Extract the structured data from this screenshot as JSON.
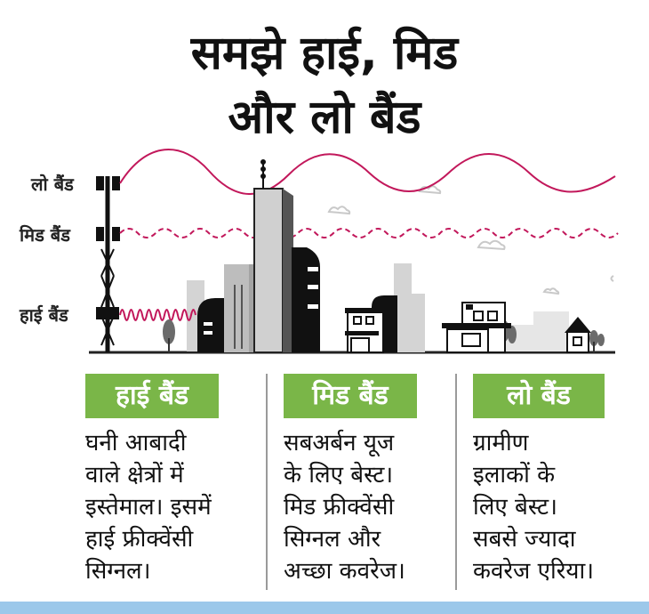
{
  "title": {
    "line1": "समझे हाई, मिड",
    "line2": "और लो बैंड"
  },
  "bands": {
    "low": "लो बैंड",
    "mid": "मिड बैंड",
    "high": "हाई बैंड"
  },
  "columns": [
    {
      "heading": "हाई बैंड",
      "lines": [
        "घनी आबादी",
        "वाले क्षेत्रों में",
        "इस्तेमाल। इसमें",
        "हाई फ्रीक्वेंसी",
        "सिग्नल।"
      ]
    },
    {
      "heading": "मिड बैंड",
      "lines": [
        "सबअर्बन यूज",
        "के लिए बेस्ट।",
        "मिड फ्रीक्वेंसी",
        "सिग्नल और",
        "अच्छा कवरेज।"
      ]
    },
    {
      "heading": "लो बैंड",
      "lines": [
        "ग्रामीण",
        "इलाकों के",
        "लिए बेस्ट।",
        "सबसे ज्यादा",
        "कवरेज एरिया।"
      ]
    }
  ],
  "colors": {
    "wave": "#c2185b",
    "heading_bg": "#7ab648",
    "bottom_bar": "#9cc8ea"
  }
}
